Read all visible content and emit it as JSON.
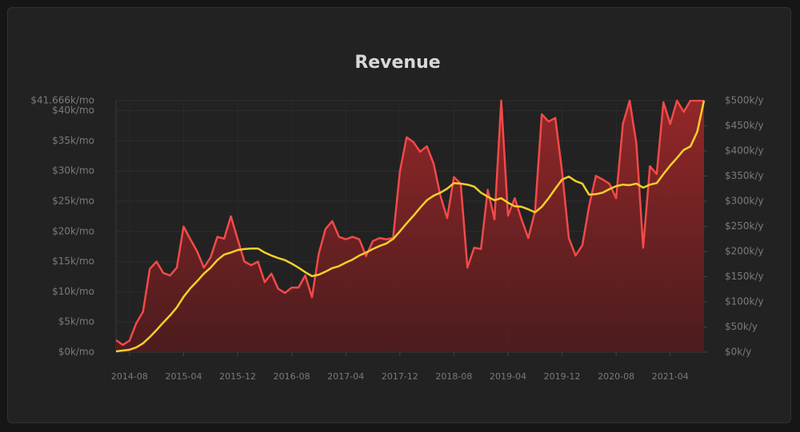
{
  "chart_data": {
    "type": "area-line",
    "title": "Revenue",
    "categories": [
      null,
      null,
      "2014-08",
      null,
      null,
      null,
      null,
      null,
      null,
      null,
      "2015-04",
      null,
      null,
      null,
      null,
      null,
      null,
      null,
      "2015-12",
      null,
      null,
      null,
      null,
      null,
      null,
      null,
      "2016-08",
      null,
      null,
      null,
      null,
      null,
      null,
      null,
      "2017-04",
      null,
      null,
      null,
      null,
      null,
      null,
      null,
      "2017-12",
      null,
      null,
      null,
      null,
      null,
      null,
      null,
      "2018-08",
      null,
      null,
      null,
      null,
      null,
      null,
      null,
      "2019-04",
      null,
      null,
      null,
      null,
      null,
      null,
      null,
      "2019-12",
      null,
      null,
      null,
      null,
      null,
      null,
      null,
      "2020-08",
      null,
      null,
      null,
      null,
      null,
      null,
      null,
      "2021-04",
      null,
      null,
      null,
      null,
      null
    ],
    "series": [
      {
        "color": "#f24a48",
        "area": true,
        "axis": "y",
        "values": [
          2000,
          1200,
          1900,
          4800,
          6700,
          13800,
          15000,
          13100,
          12700,
          14000,
          20800,
          18700,
          16700,
          14000,
          15700,
          19100,
          18800,
          22500,
          18700,
          15000,
          14400,
          15000,
          11600,
          13000,
          10500,
          9800,
          10700,
          10700,
          12700,
          9100,
          16300,
          20400,
          21700,
          19100,
          18700,
          19100,
          18700,
          15900,
          18400,
          18900,
          18700,
          18900,
          29900,
          35600,
          34800,
          33200,
          34100,
          31200,
          25900,
          22200,
          29000,
          27900,
          14000,
          17300,
          17100,
          26900,
          22000,
          41666,
          22600,
          25500,
          22000,
          18900,
          23300,
          39400,
          38200,
          38800,
          29900,
          18900,
          16000,
          17700,
          24200,
          29200,
          28600,
          27900,
          25500,
          37800,
          41666,
          34500,
          17300,
          30800,
          29500,
          41400,
          37800,
          41666,
          39800,
          41666,
          41666,
          41666
        ]
      },
      {
        "color": "#f5cf2a",
        "area": false,
        "axis": "y2",
        "values": [
          1600,
          3200,
          4800,
          9500,
          17500,
          30000,
          44000,
          59000,
          73000,
          89000,
          110000,
          127000,
          141000,
          156000,
          168000,
          183000,
          194000,
          198000,
          203000,
          205000,
          206000,
          206000,
          198000,
          192000,
          187000,
          183000,
          176000,
          168000,
          159000,
          151000,
          154000,
          160000,
          167000,
          171000,
          178000,
          184000,
          192000,
          198000,
          205000,
          211000,
          216000,
          225000,
          240000,
          256000,
          271000,
          287000,
          302000,
          311000,
          317000,
          325000,
          336000,
          335000,
          333000,
          329000,
          317000,
          309000,
          302000,
          306000,
          297000,
          290000,
          289000,
          284000,
          278000,
          289000,
          306000,
          325000,
          343000,
          349000,
          340000,
          335000,
          313000,
          314000,
          317000,
          324000,
          330000,
          333000,
          332000,
          335000,
          327000,
          333000,
          336000,
          354000,
          371000,
          386000,
          402000,
          409000,
          438000,
          500000
        ]
      }
    ],
    "ylim": [
      0,
      41666
    ],
    "yticks": [
      {
        "value": 0,
        "label": "$0k/mo"
      },
      {
        "value": 5000,
        "label": "$5k/mo"
      },
      {
        "value": 10000,
        "label": "$10k/mo"
      },
      {
        "value": 15000,
        "label": "$15k/mo"
      },
      {
        "value": 20000,
        "label": "$20k/mo"
      },
      {
        "value": 25000,
        "label": "$25k/mo"
      },
      {
        "value": 30000,
        "label": "$30k/mo"
      },
      {
        "value": 35000,
        "label": "$35k/mo"
      },
      {
        "value": 40000,
        "label": "$40k/mo"
      },
      {
        "value": 41666,
        "label": "$41.666k/mo"
      }
    ],
    "y2lim": [
      0,
      500000
    ],
    "y2ticks": [
      {
        "value": 0,
        "label": "$0k/y"
      },
      {
        "value": 50000,
        "label": "$50k/y"
      },
      {
        "value": 100000,
        "label": "$100k/y"
      },
      {
        "value": 150000,
        "label": "$150k/y"
      },
      {
        "value": 200000,
        "label": "$200k/y"
      },
      {
        "value": 250000,
        "label": "$250k/y"
      },
      {
        "value": 300000,
        "label": "$300k/y"
      },
      {
        "value": 350000,
        "label": "$350k/y"
      },
      {
        "value": 400000,
        "label": "$400k/y"
      },
      {
        "value": 450000,
        "label": "$450k/y"
      },
      {
        "value": 500000,
        "label": "$500k/y"
      }
    ],
    "grid": true
  }
}
